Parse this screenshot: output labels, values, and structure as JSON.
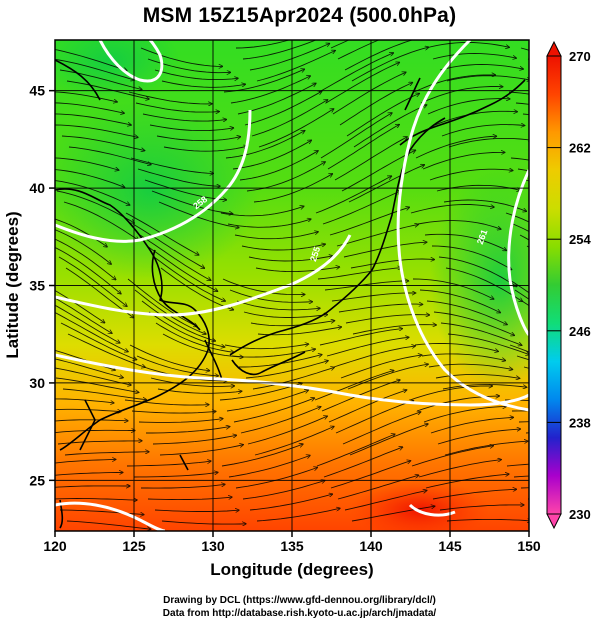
{
  "title": "MSM 15Z15Apr2024 (500.0hPa)",
  "x_axis": {
    "label": "Longitude (degrees)",
    "range": [
      120,
      150
    ],
    "ticks": [
      "120",
      "125",
      "130",
      "135",
      "140",
      "145",
      "150"
    ]
  },
  "y_axis": {
    "label": "Latitude  (degrees)",
    "range": [
      22.4,
      47.6
    ],
    "ticks": [
      "25",
      "30",
      "35",
      "40",
      "45"
    ]
  },
  "colorbar": {
    "min": 230,
    "max": 270,
    "labels": [
      "270",
      "262",
      "254",
      "246",
      "238",
      "230"
    ],
    "colors": [
      "#ff44aa",
      "#aa00cc",
      "#2222cc",
      "#0088ee",
      "#00ccee",
      "#11dd77",
      "#33cc33",
      "#88dd00",
      "#ccdd00",
      "#eecc00",
      "#ff9900",
      "#ff4400",
      "#ee1100"
    ]
  },
  "contour_labels": [
    "258",
    "261",
    "255"
  ],
  "grid": true,
  "credits": {
    "line1": "Drawing by DCL (https://www.gfd-dennou.org/library/dcl/)",
    "line2": "Data from http://database.rish.kyoto-u.ac.jp/arch/jmadata/"
  }
}
